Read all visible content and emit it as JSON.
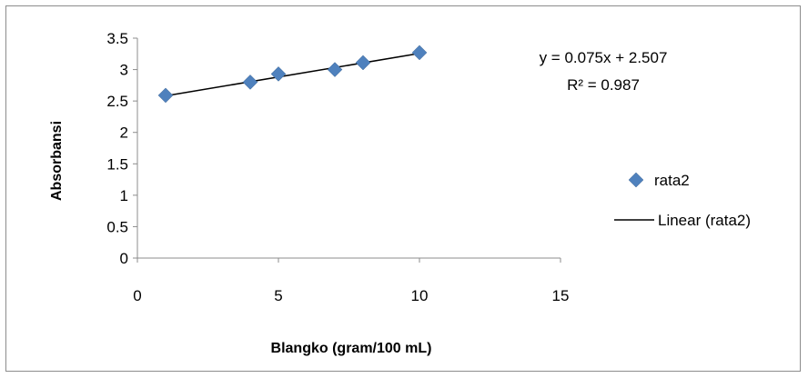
{
  "chart_data": {
    "type": "scatter",
    "title": "",
    "xlabel": "Blangko (gram/100 mL)",
    "ylabel": "Absorbansi",
    "xlim": [
      0,
      15
    ],
    "ylim": [
      0,
      3.5
    ],
    "x_ticks": [
      "0",
      "5",
      "10",
      "15"
    ],
    "y_ticks": [
      "0",
      "0.5",
      "1",
      "1.5",
      "2",
      "2.5",
      "3",
      "3.5"
    ],
    "grid": false,
    "legend_position": "right",
    "series": [
      {
        "name": "rata2",
        "marker": "diamond",
        "color": "#4f81bd",
        "x": [
          1,
          4,
          5,
          7,
          8,
          10
        ],
        "y": [
          2.59,
          2.8,
          2.93,
          3.0,
          3.11,
          3.27
        ]
      }
    ],
    "trendline": {
      "name": "Linear (rata2)",
      "color": "#000000",
      "slope": 0.075,
      "intercept": 2.507,
      "x_range": [
        1,
        10
      ],
      "equation": "y = 0.075x + 2.507",
      "r_squared": "R² = 0.987"
    }
  }
}
